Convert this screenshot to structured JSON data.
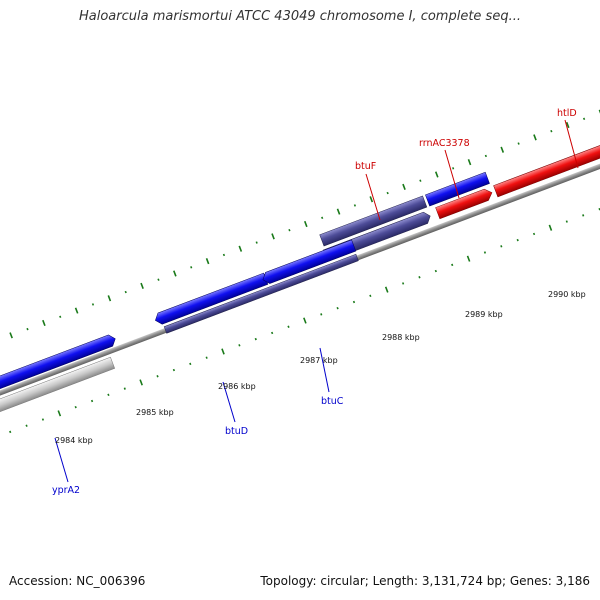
{
  "title": "Haloarcula marismortui ATCC 43049 chromosome I, complete seq...",
  "footer": {
    "accession": "Accession: NC_006396",
    "topology": "Topology: circular; Length: 3,131,724 bp; Genes: 3,186"
  },
  "colors": {
    "forward_gene": "#0000ee",
    "reverse_gene": "#ee0000",
    "other_gene": "#4b4a93",
    "backbone": "#888888",
    "ticks": "#1a7a1a"
  },
  "ticks": [
    {
      "label": "2984 kbp"
    },
    {
      "label": "2985 kbp"
    },
    {
      "label": "2986 kbp"
    },
    {
      "label": "2987 kbp"
    },
    {
      "label": "2988 kbp"
    },
    {
      "label": "2989 kbp"
    },
    {
      "label": "2990 kbp"
    }
  ],
  "genes": [
    {
      "label": "yprA2"
    },
    {
      "label": "btuD"
    },
    {
      "label": "btuC"
    },
    {
      "label": "btuF"
    },
    {
      "label": "rrnAC3378"
    },
    {
      "label": "htlD"
    }
  ]
}
